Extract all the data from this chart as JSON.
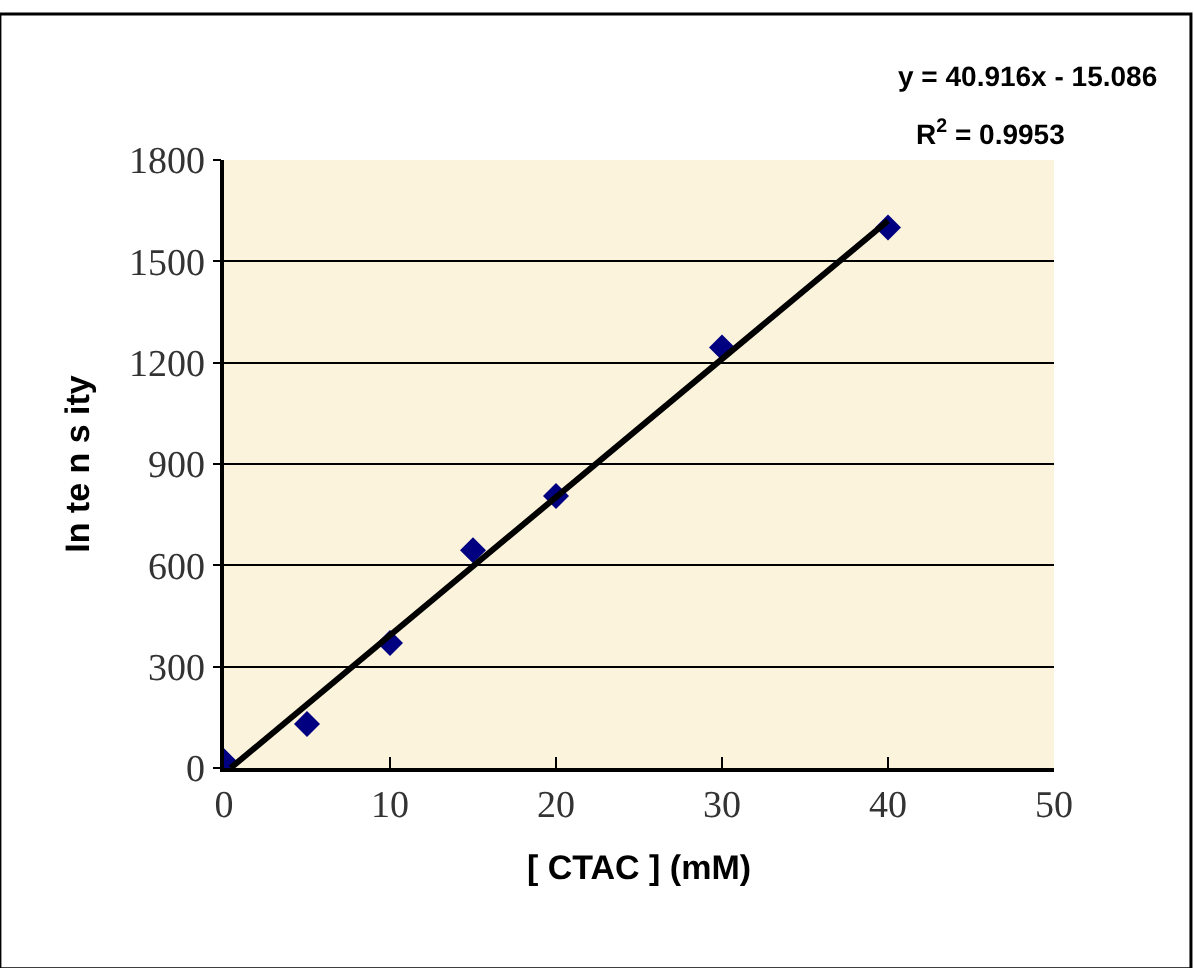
{
  "chart_data": {
    "type": "scatter",
    "xlabel": "[ CTAC ] (mM)",
    "ylabel": "In te n s ity",
    "annotations": [
      "y = 40.916x - 15.086",
      "R$^{2}$ = 0.9953"
    ],
    "series": [
      {
        "color": "#000080",
        "marker": "diamond",
        "x": [
          0,
          5,
          10,
          15,
          20,
          30,
          40
        ],
        "values": [
          20,
          130,
          370,
          645,
          805,
          1245,
          1600
        ]
      },
      {
        "type": "line",
        "color": "#000000",
        "marker": "none",
        "line_style": "solid",
        "x": [
          0.4,
          40
        ],
        "values": [
          0,
          1620
        ]
      }
    ],
    "xlim": [
      0,
      50
    ],
    "xticks": [
      0,
      10,
      20,
      30,
      40,
      50
    ],
    "ylim": [
      0,
      1800
    ],
    "yticks": [
      0,
      300,
      600,
      900,
      1200,
      1500,
      1800
    ],
    "grid": "y"
  }
}
